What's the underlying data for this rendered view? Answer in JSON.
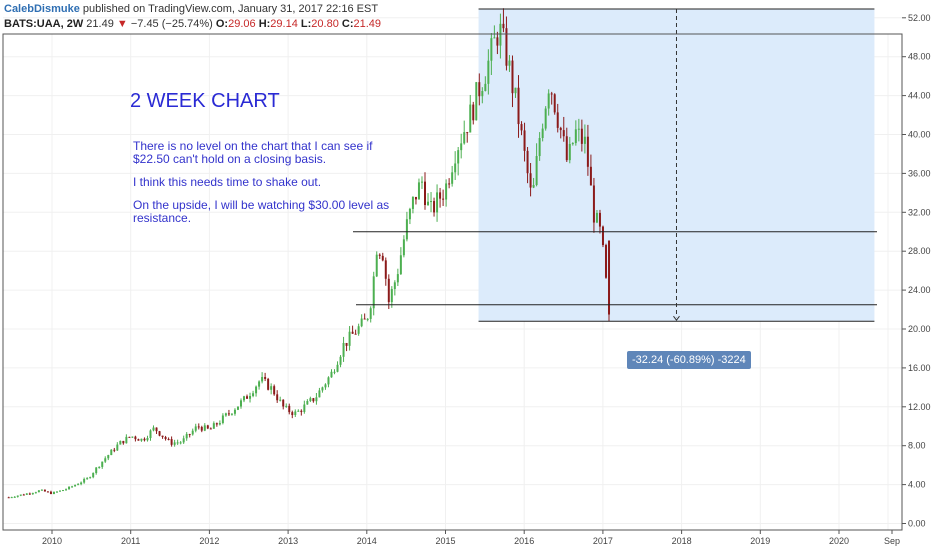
{
  "header": {
    "author": "CalebDismuke",
    "published": "published on TradingView.com, January 31, 2017 22:16 EST",
    "symbol": "BATS:UAA, 2W",
    "last": "21.49",
    "change_arrow": "▼",
    "change": "−7.45 (−25.74%)",
    "o_label": "O:",
    "o_value": "29.06",
    "h_label": "H:",
    "h_value": "29.14",
    "l_label": "L:",
    "l_value": "20.80",
    "c_label": "C:",
    "c_value": "21.49"
  },
  "annotations": {
    "title": "2 WEEK CHART",
    "line1": "There is no level on the chart that I can see if",
    "line2": "$22.50 can't hold on a closing basis.",
    "line3": "I think this needs time to shake out.",
    "line4": "On the upside, I will be watching $30.00 level as resistance."
  },
  "measure": {
    "label": "-32.24 (-60.89%) -3224",
    "from_price": 52.9,
    "to_price": 20.8,
    "from_time": 2015.42,
    "to_time": 2020.45
  },
  "colors": {
    "up": "#4caf50",
    "down": "#8b1a1a",
    "measure_fill": "#dcebfb",
    "measure_label_bg": "#5f86b9",
    "annotation": "#3333cc",
    "grid": "#f0f0f0"
  },
  "chart_data": {
    "type": "candlestick",
    "interval": "2W",
    "symbol": "BATS:UAA",
    "x_ticks": [
      "2010",
      "2011",
      "2012",
      "2013",
      "2014",
      "2015",
      "2016",
      "2017",
      "2018",
      "2019",
      "2020",
      "Sep"
    ],
    "y_ticks": [
      "0.00",
      "4.00",
      "8.00",
      "12.00",
      "16.00",
      "20.00",
      "24.00",
      "28.00",
      "32.00",
      "36.00",
      "40.00",
      "44.00",
      "48.00",
      "52.00"
    ],
    "ylim": [
      -0.5,
      54.5
    ],
    "horizontal_levels": [
      30.0,
      22.5
    ],
    "close_path": [
      [
        2009.45,
        2.7
      ],
      [
        2009.7,
        3.1
      ],
      [
        2009.85,
        3.4
      ],
      [
        2010.0,
        3.1
      ],
      [
        2010.2,
        3.6
      ],
      [
        2010.45,
        4.6
      ],
      [
        2010.65,
        6.5
      ],
      [
        2010.85,
        8.2
      ],
      [
        2011.0,
        9.0
      ],
      [
        2011.15,
        8.6
      ],
      [
        2011.3,
        9.8
      ],
      [
        2011.5,
        8.3
      ],
      [
        2011.65,
        8.4
      ],
      [
        2011.85,
        10.0
      ],
      [
        2012.0,
        9.6
      ],
      [
        2012.2,
        11.0
      ],
      [
        2012.45,
        12.8
      ],
      [
        2012.65,
        14.8
      ],
      [
        2012.8,
        13.8
      ],
      [
        2012.95,
        11.8
      ],
      [
        2013.1,
        11.3
      ],
      [
        2013.35,
        13.0
      ],
      [
        2013.55,
        15.4
      ],
      [
        2013.7,
        18.3
      ],
      [
        2013.85,
        19.7
      ],
      [
        2014.0,
        21.0
      ],
      [
        2014.07,
        23.6
      ],
      [
        2014.12,
        28.5
      ],
      [
        2014.2,
        28.0
      ],
      [
        2014.28,
        22.8
      ],
      [
        2014.38,
        25.5
      ],
      [
        2014.5,
        30.4
      ],
      [
        2014.6,
        33.4
      ],
      [
        2014.7,
        35.2
      ],
      [
        2014.8,
        31.9
      ],
      [
        2014.9,
        33.2
      ],
      [
        2015.0,
        34.5
      ],
      [
        2015.12,
        38.3
      ],
      [
        2015.22,
        40.2
      ],
      [
        2015.32,
        42.1
      ],
      [
        2015.45,
        45.3
      ],
      [
        2015.55,
        47.5
      ],
      [
        2015.68,
        51.0
      ],
      [
        2015.78,
        48.0
      ],
      [
        2015.9,
        43.0
      ],
      [
        2016.0,
        38.0
      ],
      [
        2016.1,
        33.0
      ],
      [
        2016.2,
        40.0
      ],
      [
        2016.32,
        45.7
      ],
      [
        2016.45,
        41.0
      ],
      [
        2016.55,
        37.0
      ],
      [
        2016.65,
        40.2
      ],
      [
        2016.78,
        39.0
      ],
      [
        2016.88,
        32.0
      ],
      [
        2016.98,
        29.5
      ],
      [
        2017.08,
        21.49
      ]
    ]
  }
}
